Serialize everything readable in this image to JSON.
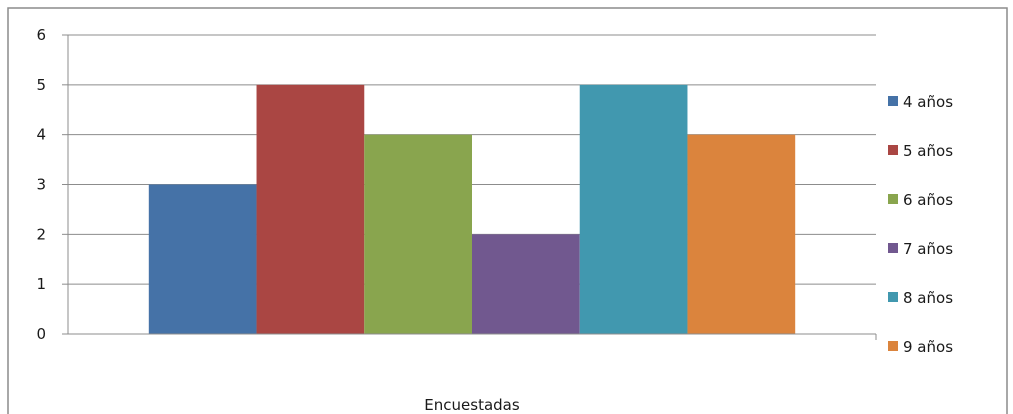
{
  "chart_data": {
    "type": "bar",
    "title": "",
    "xlabel": "",
    "ylabel": "",
    "categories": [
      "Encuestadas"
    ],
    "series": [
      {
        "name": "4 años",
        "values": [
          3
        ],
        "color": "#4572A7"
      },
      {
        "name": "5 años",
        "values": [
          5
        ],
        "color": "#AA4643"
      },
      {
        "name": "6 años",
        "values": [
          4
        ],
        "color": "#89A54E"
      },
      {
        "name": "7 años",
        "values": [
          2
        ],
        "color": "#71588F"
      },
      {
        "name": "8 años",
        "values": [
          5
        ],
        "color": "#4198AF"
      },
      {
        "name": "9 años",
        "values": [
          4
        ],
        "color": "#DB843D"
      }
    ],
    "ylim": [
      0,
      6
    ],
    "yticks": [
      "0",
      "1",
      "2",
      "3",
      "4",
      "5",
      "6"
    ],
    "grid": true,
    "legend_position": "right"
  }
}
